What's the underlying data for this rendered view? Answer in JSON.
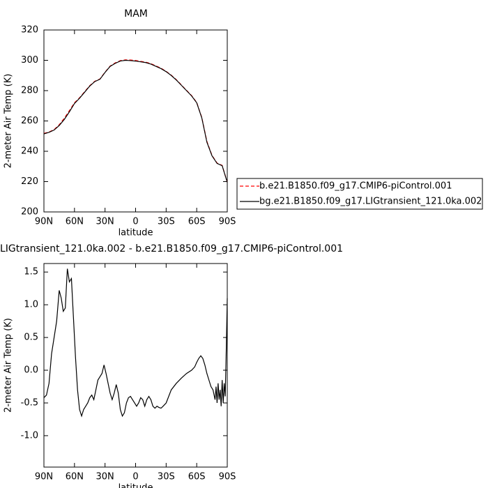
{
  "chart_data": [
    {
      "type": "line",
      "title": "MAM",
      "xlabel": "latitude",
      "ylabel": "2-meter Air Temp (K)",
      "x": [
        90,
        85,
        80,
        75,
        70,
        65,
        60,
        55,
        50,
        45,
        40,
        35,
        30,
        25,
        20,
        15,
        10,
        5,
        0,
        -5,
        -10,
        -15,
        -20,
        -25,
        -30,
        -35,
        -40,
        -45,
        -50,
        -55,
        -60,
        -65,
        -70,
        -75,
        -80,
        -85,
        -90
      ],
      "series": [
        {
          "name": "b.e21.B1850.f09_g17.CMIP6-piControl.001",
          "color": "#ff0000",
          "dash": true,
          "values": [
            251.8,
            252.7,
            254.3,
            257.5,
            261.8,
            266.8,
            272,
            275.3,
            279.3,
            283.3,
            286.2,
            287.7,
            292.2,
            296.2,
            298.3,
            299.8,
            300.3,
            300.2,
            299.9,
            299.3,
            298.8,
            297.8,
            296.3,
            294.8,
            292.7,
            290.2,
            287.2,
            283.7,
            280.2,
            276.7,
            272.2,
            262.3,
            246.5,
            237.3,
            232.2,
            230.7,
            219.6
          ]
        },
        {
          "name": "bg.e21.B1850.f09_g17.LIGtransient_121.0ka.002",
          "color": "#000000",
          "dash": false,
          "values": [
            251.5,
            252.5,
            254,
            257,
            261,
            266,
            271.5,
            275,
            279,
            283,
            286,
            287.5,
            292,
            296,
            298,
            299.5,
            300,
            299.8,
            299.5,
            299,
            298.5,
            297.5,
            296,
            294.5,
            292.5,
            290,
            287,
            283.5,
            280,
            276.5,
            272,
            262,
            246,
            237,
            232,
            230.5,
            219.5
          ]
        }
      ],
      "xlim": [
        90,
        -90
      ],
      "xticks": [
        {
          "value": 90,
          "label": "90N"
        },
        {
          "value": 60,
          "label": "60N"
        },
        {
          "value": 30,
          "label": "30N"
        },
        0,
        {
          "value": -30,
          "label": "30S"
        },
        {
          "value": -60,
          "label": "60S"
        },
        {
          "value": -90,
          "label": "90S"
        }
      ],
      "ylim": [
        200,
        320
      ],
      "yticks": [
        200,
        220,
        240,
        260,
        280,
        300,
        320
      ],
      "legend": "right"
    },
    {
      "type": "line",
      "title": "LIGtransient_121.0ka.002 - b.e21.B1850.f09_g17.CMIP6-piControl.001",
      "xlabel": "latitude",
      "ylabel": "2-meter Air Temp (K)",
      "x": [
        90,
        87.5,
        85,
        82.5,
        80,
        77.5,
        75,
        73,
        71,
        69,
        67,
        65,
        63,
        61,
        59,
        57,
        55,
        53,
        51,
        49,
        47,
        45,
        43,
        41,
        39,
        37,
        35,
        33,
        31,
        29,
        27,
        25,
        23,
        21,
        19,
        17,
        15,
        13,
        11,
        9,
        7,
        5,
        3,
        1,
        -1,
        -3,
        -5,
        -7,
        -9,
        -11,
        -13,
        -15,
        -17,
        -19,
        -21,
        -23,
        -25,
        -27,
        -30,
        -35,
        -40,
        -45,
        -50,
        -55,
        -58,
        -60,
        -62,
        -64,
        -66,
        -68,
        -70,
        -72,
        -74,
        -76,
        -78,
        -79,
        -80,
        -81,
        -82,
        -83,
        -84,
        -85,
        -86,
        -87,
        -88,
        -89,
        -90
      ],
      "series": [
        {
          "color": "#000000",
          "dash": false,
          "values": [
            -0.42,
            -0.38,
            -0.2,
            0.25,
            0.5,
            0.75,
            1.22,
            1.1,
            0.9,
            0.95,
            1.55,
            1.35,
            1.4,
            0.8,
            0.2,
            -0.3,
            -0.6,
            -0.7,
            -0.6,
            -0.55,
            -0.5,
            -0.42,
            -0.38,
            -0.45,
            -0.3,
            -0.15,
            -0.1,
            -0.05,
            0.08,
            -0.05,
            -0.2,
            -0.35,
            -0.45,
            -0.35,
            -0.22,
            -0.35,
            -0.6,
            -0.7,
            -0.65,
            -0.5,
            -0.42,
            -0.4,
            -0.45,
            -0.5,
            -0.55,
            -0.5,
            -0.42,
            -0.45,
            -0.55,
            -0.45,
            -0.4,
            -0.45,
            -0.55,
            -0.58,
            -0.55,
            -0.57,
            -0.58,
            -0.55,
            -0.5,
            -0.3,
            -0.2,
            -0.12,
            -0.05,
            0.0,
            0.05,
            0.12,
            0.18,
            0.22,
            0.18,
            0.08,
            -0.05,
            -0.15,
            -0.25,
            -0.3,
            -0.45,
            -0.25,
            -0.5,
            -0.2,
            -0.45,
            -0.3,
            -0.55,
            -0.15,
            -0.5,
            -0.2,
            -0.4,
            0.3,
            1.1
          ]
        }
      ],
      "xlim": [
        90,
        -90
      ],
      "xticks": [
        {
          "value": 90,
          "label": "90N"
        },
        {
          "value": 60,
          "label": "60N"
        },
        {
          "value": 30,
          "label": "30N"
        },
        0,
        {
          "value": -30,
          "label": "30S"
        },
        {
          "value": -60,
          "label": "60S"
        },
        {
          "value": -90,
          "label": "90S"
        }
      ],
      "ylim": [
        -1.48,
        1.63
      ],
      "yticks": [
        {
          "value": -1,
          "label": "-1.0"
        },
        {
          "value": -0.5,
          "label": "-0.5"
        },
        {
          "value": 0,
          "label": "0.0"
        },
        0.5,
        {
          "value": 1,
          "label": "1.0"
        },
        1.5
      ]
    }
  ]
}
